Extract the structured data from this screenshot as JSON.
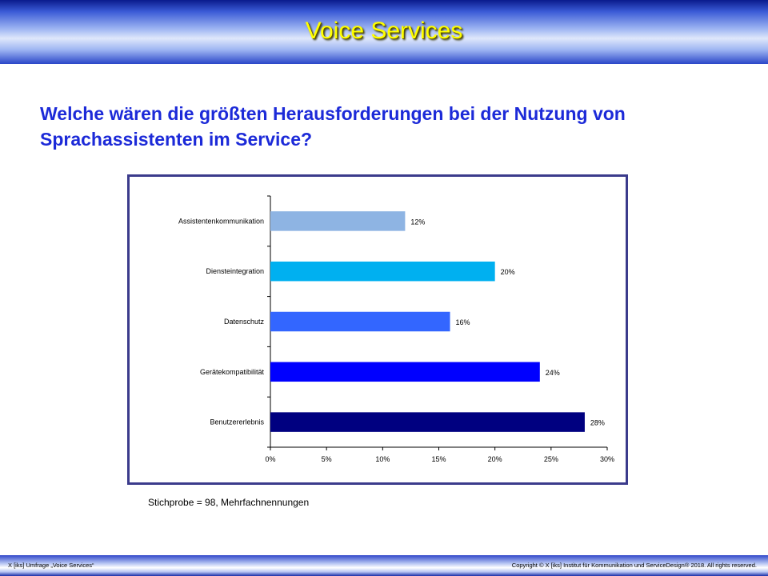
{
  "header": {
    "title": "Voice Services"
  },
  "question": "Welche wären die größten Herausforderungen bei der Nutzung von Sprachassistenten im Service?",
  "note": "Stichprobe = 98, Mehrfachnennungen",
  "footer": {
    "left": "X [iks] Umfrage „Voice Services“",
    "right": "Copyright © X [iks] Institut für Kommunikation und ServiceDesign® 2018. All rights reserved."
  },
  "colors": {
    "title": "#ffff00",
    "question": "#1c2ad8",
    "frame": "#3b3b8c"
  },
  "chart_data": {
    "type": "bar",
    "orientation": "horizontal",
    "categories": [
      "Assistentenkommunikation",
      "Diensteintegration",
      "Datenschutz",
      "Gerätekompatibilität",
      "Benutzererlebnis"
    ],
    "values": [
      12,
      20,
      16,
      24,
      28
    ],
    "value_labels": [
      "12%",
      "20%",
      "16%",
      "24%",
      "28%"
    ],
    "bar_colors": [
      "#8eb4e3",
      "#00b0f0",
      "#3366ff",
      "#0000ff",
      "#000080"
    ],
    "xlim": [
      0,
      30
    ],
    "xticks": [
      0,
      5,
      10,
      15,
      20,
      25,
      30
    ],
    "xtick_labels": [
      "0%",
      "5%",
      "10%",
      "15%",
      "20%",
      "25%",
      "30%"
    ],
    "title": "",
    "xlabel": "",
    "ylabel": "",
    "grid": false,
    "legend": false
  }
}
